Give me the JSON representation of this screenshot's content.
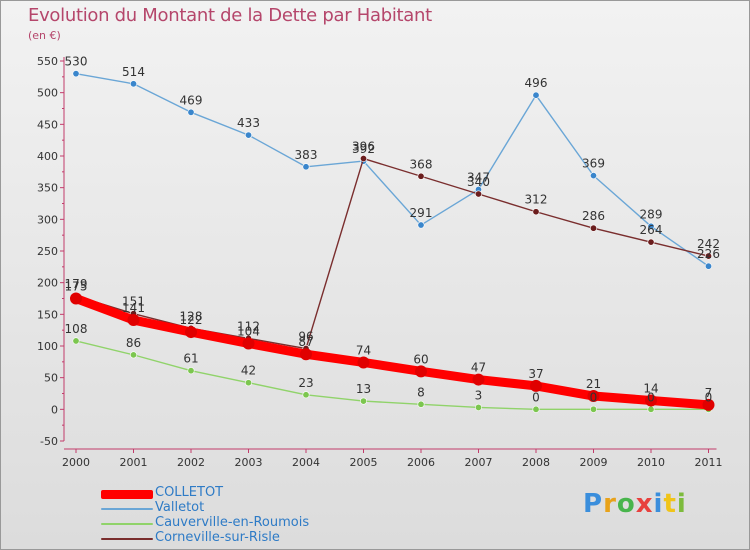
{
  "title": "Evolution du Montant de la Dette par Habitant",
  "unit": "(en €)",
  "brand": "Proxiti",
  "chart_data": {
    "type": "line",
    "categories": [
      "2000",
      "2001",
      "2002",
      "2003",
      "2004",
      "2005",
      "2006",
      "2007",
      "2008",
      "2009",
      "2010",
      "2011"
    ],
    "ylim": [
      -50,
      550
    ],
    "yticks": [
      "-50",
      "0",
      "50",
      "100",
      "150",
      "200",
      "250",
      "300",
      "350",
      "400",
      "450",
      "500",
      "550"
    ],
    "grid": false,
    "legend_position": "bottom-left",
    "series": [
      {
        "name": "COLLETOT",
        "color": "#ff0000",
        "values": [
          175,
          141,
          122,
          104,
          87,
          74,
          60,
          47,
          37,
          21,
          14,
          7
        ]
      },
      {
        "name": "Valletot",
        "color": "#6aa6d6",
        "values": [
          530,
          514,
          469,
          433,
          383,
          392,
          291,
          347,
          496,
          369,
          289,
          226
        ]
      },
      {
        "name": "Cauverville-en-Roumois",
        "color": "#90d36a",
        "values": [
          108,
          86,
          61,
          42,
          23,
          13,
          8,
          3,
          0,
          0,
          0,
          0
        ]
      },
      {
        "name": "Corneville-sur-Risle",
        "color": "#7a2e2e",
        "values": [
          179,
          151,
          128,
          112,
          96,
          396,
          368,
          340,
          312,
          286,
          264,
          242
        ]
      }
    ]
  }
}
